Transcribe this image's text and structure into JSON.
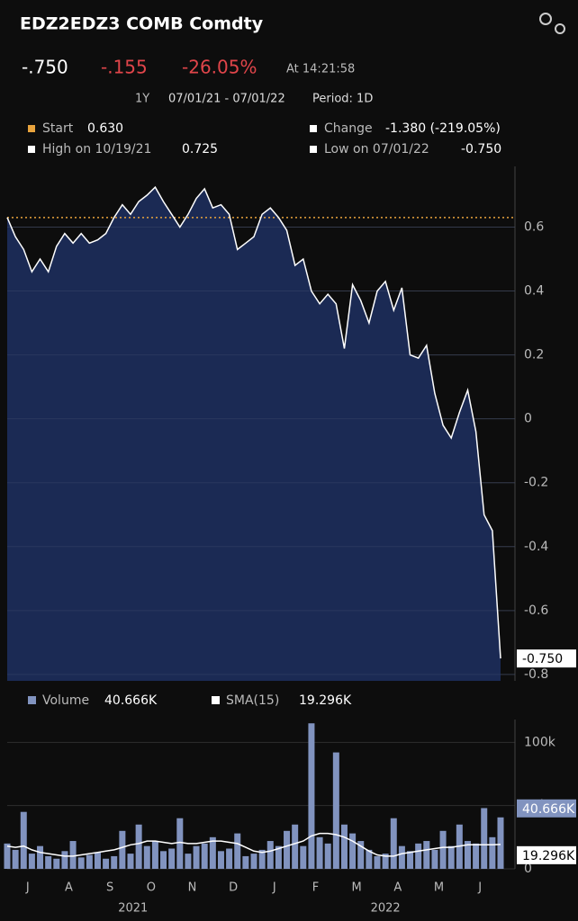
{
  "header": {
    "title": "EDZ2EDZ3 COMB Comdty",
    "last": "-.750",
    "change": "-.155",
    "change_pct": "-26.05%",
    "time": "At 14:21:58",
    "range": "1Y",
    "dates": "07/01/21 - 07/01/22",
    "period": "Period: 1D"
  },
  "stats": [
    {
      "label": "Start",
      "value": "0.630"
    },
    {
      "label": "Change",
      "value": "-1.380 (-219.05%)"
    },
    {
      "label": "High on 10/19/21",
      "value": "0.725"
    },
    {
      "label": "Low on 07/01/22",
      "value": "-0.750"
    }
  ],
  "chart_data": [
    {
      "type": "area",
      "color": "#ffffff",
      "fill": "#1b2a54",
      "values": [
        0.63,
        0.57,
        0.53,
        0.46,
        0.5,
        0.46,
        0.54,
        0.58,
        0.55,
        0.58,
        0.55,
        0.56,
        0.58,
        0.63,
        0.67,
        0.64,
        0.68,
        0.7,
        0.725,
        0.68,
        0.64,
        0.6,
        0.64,
        0.69,
        0.72,
        0.66,
        0.67,
        0.64,
        0.53,
        0.55,
        0.57,
        0.64,
        0.66,
        0.63,
        0.59,
        0.48,
        0.5,
        0.4,
        0.36,
        0.39,
        0.36,
        0.22,
        0.42,
        0.37,
        0.3,
        0.4,
        0.43,
        0.34,
        0.41,
        0.2,
        0.19,
        0.23,
        0.08,
        -0.02,
        -0.06,
        0.02,
        0.09,
        -0.04,
        -0.3,
        -0.35,
        -0.75
      ],
      "last_label": "-0.750",
      "start_line": 0.63,
      "start_color": "#e8a33d",
      "ylim": [
        -0.82,
        0.79
      ],
      "yticks": [
        0.6,
        0.4,
        0.2,
        0,
        -0.2,
        -0.4,
        -0.6,
        -0.8
      ],
      "grid": true
    },
    {
      "type": "bar",
      "series": [
        {
          "name": "Volume",
          "color": "#8193bf",
          "type": "bar",
          "values": [
            20,
            15,
            45,
            12,
            18,
            10,
            8,
            14,
            22,
            9,
            11,
            13,
            8,
            10,
            30,
            12,
            35,
            18,
            22,
            14,
            16,
            40,
            12,
            18,
            20,
            25,
            14,
            16,
            28,
            10,
            12,
            15,
            22,
            18,
            30,
            35,
            18,
            115,
            25,
            20,
            92,
            35,
            28,
            22,
            15,
            10,
            12,
            40,
            18,
            14,
            20,
            22,
            15,
            30,
            18,
            35,
            22,
            20,
            48,
            25,
            40.666
          ],
          "last_label": "40.666K"
        },
        {
          "name": "SMA(15)",
          "color": "#ffffff",
          "type": "line",
          "values": [
            18,
            17,
            18,
            15,
            13,
            12,
            11,
            10,
            10,
            11,
            12,
            13,
            14,
            15,
            17,
            19,
            20,
            22,
            22,
            21,
            20,
            21,
            20,
            20,
            21,
            22,
            22,
            21,
            20,
            17,
            14,
            13,
            14,
            16,
            18,
            20,
            22,
            26,
            28,
            28,
            27,
            25,
            22,
            18,
            14,
            11,
            10,
            10,
            12,
            13,
            14,
            15,
            16,
            17,
            17,
            18,
            19,
            19,
            19,
            19,
            19.296
          ],
          "last_label": "19.296K"
        }
      ],
      "ylim": [
        0,
        118
      ],
      "yticks": [
        {
          "value": 100,
          "label": "100k"
        },
        {
          "value": 50,
          "label": "50k"
        },
        0
      ],
      "grid": true,
      "xticks": [
        {
          "value": 2.5,
          "label": "J"
        },
        {
          "value": 7.5,
          "label": "A"
        },
        {
          "value": 12.5,
          "label": "S"
        },
        {
          "value": 17.5,
          "label": "O"
        },
        {
          "value": 22.5,
          "label": "N"
        },
        {
          "value": 27.5,
          "label": "D"
        },
        {
          "value": 32.5,
          "label": "J"
        },
        {
          "value": 37.5,
          "label": "F"
        },
        {
          "value": 42.5,
          "label": "M"
        },
        {
          "value": 47.5,
          "label": "A"
        },
        {
          "value": 52.5,
          "label": "M"
        },
        {
          "value": 57.5,
          "label": "J"
        }
      ],
      "year_labels": [
        {
          "value": 15.3,
          "label": "2021"
        },
        {
          "value": 46,
          "label": "2022"
        }
      ]
    }
  ]
}
